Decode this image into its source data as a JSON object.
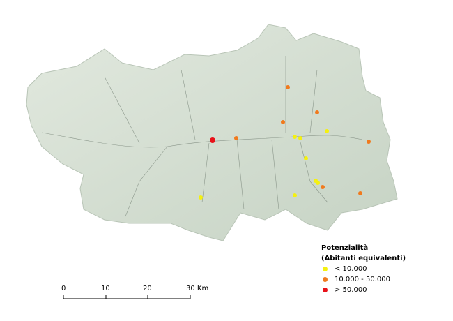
{
  "legend": {
    "title": "Potenzialità",
    "subtitle": "(Abitanti equivalenti)",
    "items": [
      {
        "label": "< 10.000",
        "color": "#f4f011"
      },
      {
        "label": "10.000 - 50.000",
        "color": "#f07a1e"
      },
      {
        "label": "> 50.000",
        "color": "#e8121a"
      }
    ]
  },
  "scalebar": {
    "ticks": [
      "0",
      "10",
      "20",
      "30 Km"
    ]
  },
  "map": {
    "land_color": "#d5dfd3",
    "river_color": "#8a968a"
  }
}
